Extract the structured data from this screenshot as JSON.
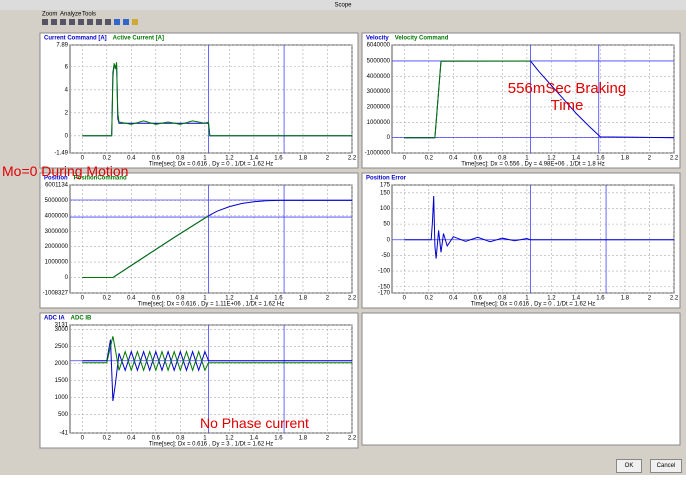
{
  "window": {
    "title": "Scope",
    "menu": [
      "Zoom",
      "Analyze",
      "Tools"
    ]
  },
  "chart_data": [
    {
      "type": "line",
      "x": [
        0,
        0.24,
        0.25,
        0.26,
        0.27,
        0.28,
        0.29,
        0.3,
        0.4,
        0.5,
        0.6,
        0.7,
        0.8,
        0.9,
        1.0,
        1.03,
        1.04,
        2.2
      ],
      "series": [
        {
          "name": "Current Command [A]",
          "color": "#0000cc",
          "values": [
            0,
            0,
            5.5,
            6.2,
            6,
            6.2,
            1.5,
            1.1,
            1.1,
            1.1,
            1.1,
            1.1,
            1.1,
            1.1,
            1.1,
            1.1,
            0,
            0
          ]
        },
        {
          "name": "Active Current [A]",
          "color": "#007700",
          "values": [
            0,
            0,
            5,
            6.3,
            5.8,
            6.4,
            2,
            1.2,
            1.0,
            1.3,
            1.0,
            1.2,
            1.0,
            1.3,
            1.1,
            1.2,
            0,
            0
          ]
        }
      ],
      "xlim": [
        -0.1,
        2.2
      ],
      "xticks": [
        0,
        0.2,
        0.4,
        0.6,
        0.8,
        1,
        1.2,
        1.4,
        1.6,
        1.8,
        2,
        2.2
      ],
      "ylim": [
        -1.49,
        7.89
      ],
      "yticks": [
        -1.49,
        0,
        2,
        4,
        6,
        7.89
      ],
      "xlabel": "Time[sec]: Dx = 0.616 , Dy = 0 , 1/Dt = 1.62 Hz",
      "grid": true,
      "cursors": [
        1.03,
        1.646
      ],
      "hcursors": []
    },
    {
      "type": "line",
      "x": [
        0,
        0.25,
        0.3,
        1.03,
        1.1,
        1.2,
        1.3,
        1.4,
        1.5,
        1.6,
        2.2
      ],
      "series": [
        {
          "name": "Velocity",
          "color": "#0000cc",
          "values": [
            0,
            0,
            4980000,
            5000000,
            4300000,
            3400000,
            2500000,
            1600000,
            800000,
            50000,
            0
          ]
        },
        {
          "name": "Velocity Command",
          "color": "#007700",
          "values": [
            0,
            0,
            5000000,
            5000000,
            null,
            null,
            null,
            null,
            null,
            null,
            null
          ]
        }
      ],
      "xlim": [
        -0.1,
        2.2
      ],
      "xticks": [
        0,
        0.2,
        0.4,
        0.6,
        0.8,
        1,
        1.2,
        1.4,
        1.6,
        1.8,
        2,
        2.2
      ],
      "ylim": [
        -1000000,
        6040000
      ],
      "yticks": [
        -1000000,
        0,
        1000000,
        2000000,
        3000000,
        4000000,
        5000000,
        6040000
      ],
      "xlabel": "Time[sec]: Dx = 0.556 , Dy = 4.98E+06 , 1/Dt = 1.8 Hz",
      "grid": true,
      "cursors": [
        1.03,
        1.586
      ],
      "hcursors": [
        5000000,
        20000
      ]
    },
    {
      "type": "line",
      "x": [
        0,
        0.25,
        0.5,
        0.75,
        1.03,
        1.1,
        1.2,
        1.3,
        1.4,
        1.5,
        1.6,
        2.2
      ],
      "series": [
        {
          "name": "Position",
          "color": "#0000cc",
          "values": [
            0,
            0,
            1300000,
            2600000,
            4000000,
            4300000,
            4600000,
            4800000,
            4920000,
            4980000,
            5000000,
            5000000
          ]
        },
        {
          "name": "PositionCommand",
          "color": "#007700",
          "values": [
            0,
            0,
            1300000,
            2600000,
            4000000,
            null,
            null,
            null,
            null,
            null,
            null,
            null
          ]
        }
      ],
      "xlim": [
        -0.1,
        2.2
      ],
      "xticks": [
        0,
        0.2,
        0.4,
        0.6,
        0.8,
        1,
        1.2,
        1.4,
        1.6,
        1.8,
        2,
        2.2
      ],
      "ylim": [
        -1008327,
        6001134
      ],
      "yticks": [
        -1008327,
        0,
        1000000,
        2000000,
        3000000,
        4000000,
        5000000,
        6001134
      ],
      "xlabel": "Time[sec]: Dx = 0.616 , Dy = 1.11E+06 , 1/Dt = 1.62 Hz",
      "grid": true,
      "cursors": [
        1.03,
        1.646
      ],
      "hcursors": [
        5030000,
        3920000
      ]
    },
    {
      "type": "line",
      "x": [
        0,
        0.22,
        0.23,
        0.24,
        0.25,
        0.26,
        0.28,
        0.3,
        0.32,
        0.35,
        0.4,
        0.5,
        0.6,
        0.7,
        0.8,
        0.9,
        1.0,
        1.03,
        2.2
      ],
      "series": [
        {
          "name": "Position Error",
          "color": "#0000cc",
          "values": [
            0,
            0,
            60,
            140,
            -20,
            -60,
            30,
            -40,
            20,
            -20,
            10,
            -5,
            8,
            -6,
            5,
            -3,
            4,
            0,
            0
          ]
        }
      ],
      "xlim": [
        -0.1,
        2.2
      ],
      "xticks": [
        0,
        0.2,
        0.4,
        0.6,
        0.8,
        1,
        1.2,
        1.4,
        1.6,
        1.8,
        2,
        2.2
      ],
      "ylim": [
        -170,
        175
      ],
      "yticks": [
        -170,
        -150,
        -100,
        -50,
        0,
        50,
        100,
        150,
        175
      ],
      "xlabel": "Time[sec]: Dx = 0.616 , Dy = 0 , 1/Dt = 1.62 Hz",
      "grid": true,
      "cursors": [
        1.03,
        1.646
      ],
      "hcursors": [
        0
      ]
    },
    {
      "type": "line",
      "x": [
        0,
        0.2,
        0.23,
        0.25,
        0.27,
        0.3,
        0.35,
        0.4,
        0.45,
        0.5,
        0.55,
        0.6,
        0.65,
        0.7,
        0.75,
        0.8,
        0.85,
        0.9,
        0.95,
        1.0,
        1.03,
        1.05,
        2.2
      ],
      "series": [
        {
          "name": "ADC IA",
          "color": "#0000cc",
          "values": [
            2080,
            2080,
            2700,
            900,
            1400,
            2300,
            1800,
            2350,
            1800,
            2350,
            1800,
            2350,
            1800,
            2350,
            1800,
            2350,
            1800,
            2350,
            1800,
            2350,
            2080,
            2080,
            2080
          ]
        },
        {
          "name": "ADC IB",
          "color": "#007700",
          "values": [
            2020,
            2020,
            2500,
            2800,
            2400,
            1800,
            2350,
            1800,
            2350,
            1800,
            2350,
            1800,
            2350,
            1800,
            2350,
            1800,
            2350,
            1800,
            2350,
            1800,
            2020,
            2020,
            2020
          ]
        }
      ],
      "xlim": [
        -0.1,
        2.2
      ],
      "xticks": [
        0,
        0.2,
        0.4,
        0.6,
        0.8,
        1,
        1.2,
        1.4,
        1.6,
        1.8,
        2,
        2.2
      ],
      "ylim": [
        -41,
        3131
      ],
      "yticks": [
        -41,
        500,
        1000,
        1500,
        2000,
        2500,
        3000,
        3131
      ],
      "xlabel": "Time[sec]: Dx = 0.616 , Dy = 3 , 1/Dt = 1.62 Hz",
      "grid": true,
      "cursors": [
        1.03,
        1.646
      ],
      "hcursors": [
        2080
      ]
    }
  ],
  "annotations": [
    "Mo=0 During Motion",
    "556mSec Braking Time",
    "No Phase current"
  ],
  "buttons": [
    "OK",
    "Cancel"
  ]
}
